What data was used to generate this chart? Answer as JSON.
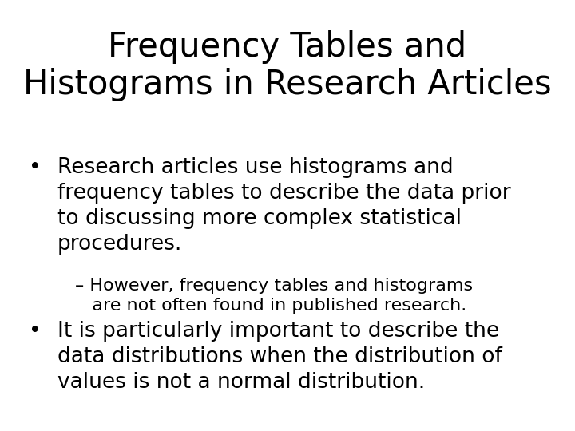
{
  "background_color": "#ffffff",
  "title_line1": "Frequency Tables and",
  "title_line2": "Histograms in Research Articles",
  "title_fontsize": 30,
  "body_fontsize": 19,
  "sub_fontsize": 16,
  "text_color": "#000000",
  "bullet1_lines": [
    "Research articles use histograms and",
    "frequency tables to describe the data prior",
    "to discussing more complex statistical",
    "procedures."
  ],
  "sub_lines": [
    "– However, frequency tables and histograms",
    "   are not often found in published research."
  ],
  "bullet2_lines": [
    "It is particularly important to describe the",
    "data distributions when the distribution of",
    "values is not a normal distribution."
  ],
  "font_family": "DejaVu Sans"
}
